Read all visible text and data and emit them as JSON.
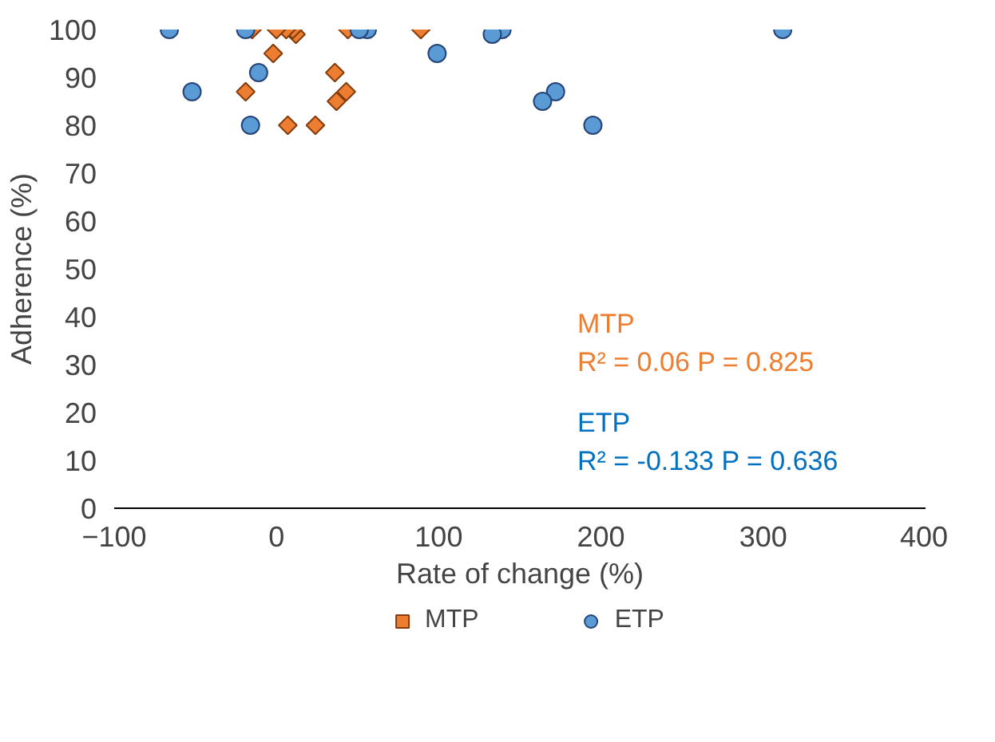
{
  "chart_data": {
    "type": "scatter",
    "xlabel": "Rate of change (%)",
    "ylabel": "Adherence (%)",
    "xlim": [
      -100,
      400
    ],
    "xticks": [
      -100,
      0,
      100,
      200,
      300,
      400
    ],
    "ylim": [
      0,
      100
    ],
    "yticks": [
      0,
      10,
      20,
      30,
      40,
      50,
      60,
      70,
      80,
      90,
      100
    ],
    "grid": false,
    "legend": "bottom",
    "series": [
      {
        "name": "MTP",
        "color": "#ed7d31",
        "marker": "diamond",
        "x": [
          -15,
          0,
          6,
          10,
          12,
          44,
          89,
          -2,
          36,
          -19,
          43,
          37,
          7,
          24
        ],
        "values": [
          100,
          100,
          100,
          100,
          99,
          100,
          100,
          95,
          91,
          87,
          87,
          85,
          80,
          80
        ]
      },
      {
        "name": "ETP",
        "color": "#5b9bd5",
        "marker": "circle",
        "x": [
          -66,
          -19,
          51,
          56,
          133,
          139,
          312,
          99,
          -11,
          -52,
          -16,
          164,
          172,
          195
        ],
        "values": [
          100,
          100,
          100,
          100,
          99,
          100,
          100,
          95,
          91,
          87,
          80,
          85,
          87,
          80
        ]
      }
    ],
    "annotations": [
      "MTP",
      "R² = 0.06     P = 0.825",
      "ETP",
      "R² = -0.133  P = 0.636"
    ]
  }
}
